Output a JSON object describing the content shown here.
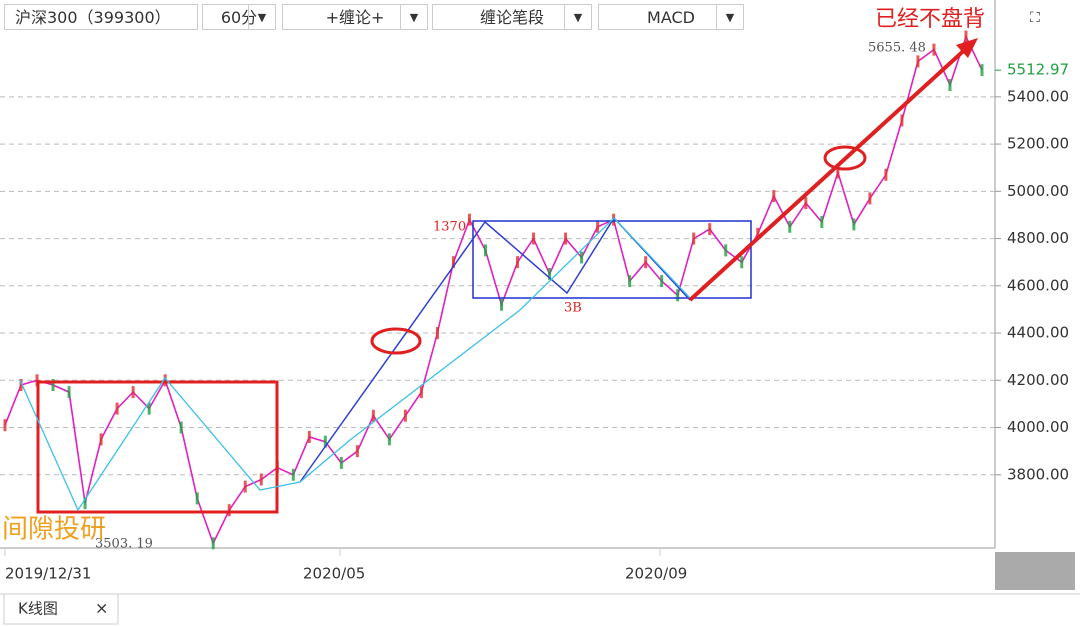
{
  "toolbar": {
    "symbol": "沪深300（399300）",
    "period": "60分",
    "indicator_1": "+缠论+",
    "indicator_2": "缠论笔段",
    "indicator_3": "MACD"
  },
  "chart": {
    "yaxis": {
      "ylim": [
        3490,
        5810
      ],
      "yticks": [
        {
          "value": 3800,
          "label": "3800.00"
        },
        {
          "value": 4000,
          "label": "4000.00"
        },
        {
          "value": 4200,
          "label": "4200.00"
        },
        {
          "value": 4400,
          "label": "4400.00"
        },
        {
          "value": 4600,
          "label": "4600.00"
        },
        {
          "value": 4800,
          "label": "4800.00"
        },
        {
          "value": 5000,
          "label": "5000.00"
        },
        {
          "value": 5200,
          "label": "5200.00"
        },
        {
          "value": 5400,
          "label": "5400.00"
        }
      ]
    },
    "xaxis": {
      "labels": [
        "2019/12/31",
        "2020/05",
        "2020/09"
      ]
    },
    "last_price": {
      "value": 5512.97,
      "label": "5512.97"
    },
    "annotations": {
      "high": "5655. 48",
      "low": "3503. 19",
      "count": "1370",
      "buy_point": "3B",
      "top_note": "已经不盘背",
      "bottom_note": "间隙投研"
    },
    "price_series": {
      "values": [
        4010,
        4180,
        4200,
        4180,
        4150,
        3680,
        3950,
        4080,
        4150,
        4080,
        4200,
        4000,
        3700,
        3510,
        3650,
        3750,
        3780,
        3830,
        3800,
        3960,
        3940,
        3850,
        3900,
        4050,
        3950,
        4050,
        4150,
        4400,
        4700,
        4880,
        4750,
        4520,
        4700,
        4800,
        4650,
        4800,
        4720,
        4850,
        4880,
        4620,
        4700,
        4620,
        4560,
        4800,
        4840,
        4750,
        4700,
        4820,
        4980,
        4850,
        4950,
        4870,
        5080,
        4860,
        4970,
        5070,
        5300,
        5550,
        5600,
        5450,
        5655,
        5513
      ]
    }
  },
  "tabs": {
    "active": "K线图",
    "close": "×"
  }
}
